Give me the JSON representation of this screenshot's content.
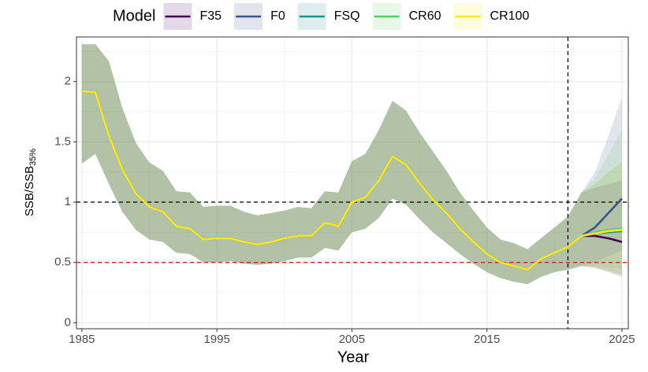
{
  "chart_data": {
    "type": "line",
    "x_label": "Year",
    "y_label": "SSB/SSB",
    "y_label_sub": "35%",
    "legend_title": "Model",
    "legend_position": "top",
    "grid": true,
    "band_opacity": 0.15,
    "xlim": [
      1984.6,
      2025.47
    ],
    "xticks": [
      1985,
      1995,
      2005,
      2015,
      2025
    ],
    "xminor": [
      1990,
      2000,
      2010,
      2020
    ],
    "ylim": [
      -0.05,
      2.37
    ],
    "yticks": [
      0,
      0.5,
      1,
      1.5,
      2
    ],
    "yminor": [
      0.25,
      0.75,
      1.25,
      1.75,
      2.25
    ],
    "hlines": [
      {
        "value": 1,
        "color": "#000000"
      },
      {
        "value": 0.5,
        "color": "#e41a1c"
      }
    ],
    "vlines": [
      {
        "value": 2021,
        "color": "#000000"
      }
    ],
    "x": [
      1985,
      1986,
      1987,
      1988,
      1989,
      1990,
      1991,
      1992,
      1993,
      1994,
      1995,
      1996,
      1997,
      1998,
      1999,
      2000,
      2001,
      2002,
      2003,
      2004,
      2005,
      2006,
      2007,
      2008,
      2009,
      2010,
      2011,
      2012,
      2013,
      2014,
      2015,
      2016,
      2017,
      2018,
      2019,
      2020,
      2021,
      2022,
      2023,
      2024,
      2025
    ],
    "series": [
      {
        "name": "F35",
        "color": "#440154",
        "values": [
          1.92,
          1.91,
          1.55,
          1.27,
          1.07,
          0.96,
          0.92,
          0.8,
          0.78,
          0.69,
          0.7,
          0.7,
          0.67,
          0.65,
          0.67,
          0.7,
          0.72,
          0.72,
          0.83,
          0.8,
          1.0,
          1.04,
          1.18,
          1.38,
          1.31,
          1.16,
          1.02,
          0.91,
          0.78,
          0.67,
          0.57,
          0.5,
          0.47,
          0.44,
          0.53,
          0.58,
          0.63,
          0.72,
          0.72,
          0.7,
          0.67
        ],
        "upper": [
          2.31,
          2.31,
          2.17,
          1.78,
          1.49,
          1.33,
          1.26,
          1.09,
          1.08,
          0.96,
          0.97,
          0.97,
          0.92,
          0.89,
          0.91,
          0.93,
          0.96,
          0.95,
          1.09,
          1.08,
          1.34,
          1.4,
          1.6,
          1.84,
          1.76,
          1.58,
          1.42,
          1.26,
          1.08,
          0.93,
          0.79,
          0.69,
          0.66,
          0.61,
          0.7,
          0.79,
          0.88,
          1.08,
          1.12,
          1.15,
          1.18
        ],
        "lower": [
          1.32,
          1.4,
          1.15,
          0.92,
          0.77,
          0.69,
          0.67,
          0.58,
          0.57,
          0.5,
          0.5,
          0.51,
          0.49,
          0.48,
          0.49,
          0.51,
          0.54,
          0.54,
          0.62,
          0.6,
          0.75,
          0.78,
          0.87,
          1.03,
          0.98,
          0.86,
          0.75,
          0.66,
          0.57,
          0.49,
          0.42,
          0.37,
          0.34,
          0.32,
          0.38,
          0.42,
          0.44,
          0.47,
          0.46,
          0.42,
          0.38
        ]
      },
      {
        "name": "F0",
        "color": "#3b528b",
        "values": [
          1.92,
          1.91,
          1.55,
          1.27,
          1.07,
          0.96,
          0.92,
          0.8,
          0.78,
          0.69,
          0.7,
          0.7,
          0.67,
          0.65,
          0.67,
          0.7,
          0.72,
          0.72,
          0.83,
          0.8,
          1.0,
          1.04,
          1.18,
          1.38,
          1.31,
          1.16,
          1.02,
          0.91,
          0.78,
          0.67,
          0.57,
          0.5,
          0.47,
          0.44,
          0.53,
          0.58,
          0.63,
          0.72,
          0.79,
          0.91,
          1.03
        ],
        "upper": [
          2.31,
          2.31,
          2.17,
          1.78,
          1.49,
          1.33,
          1.26,
          1.09,
          1.08,
          0.96,
          0.97,
          0.97,
          0.92,
          0.89,
          0.91,
          0.93,
          0.96,
          0.95,
          1.09,
          1.08,
          1.34,
          1.4,
          1.6,
          1.84,
          1.76,
          1.58,
          1.42,
          1.26,
          1.08,
          0.93,
          0.79,
          0.69,
          0.66,
          0.61,
          0.7,
          0.79,
          0.88,
          1.08,
          1.25,
          1.55,
          1.87
        ],
        "lower": [
          1.32,
          1.4,
          1.15,
          0.92,
          0.77,
          0.69,
          0.67,
          0.58,
          0.57,
          0.5,
          0.5,
          0.51,
          0.49,
          0.48,
          0.49,
          0.51,
          0.54,
          0.54,
          0.62,
          0.6,
          0.75,
          0.78,
          0.87,
          1.03,
          0.98,
          0.86,
          0.75,
          0.66,
          0.57,
          0.49,
          0.42,
          0.37,
          0.34,
          0.32,
          0.38,
          0.42,
          0.44,
          0.47,
          0.5,
          0.55,
          0.6
        ]
      },
      {
        "name": "FSQ",
        "color": "#21908c",
        "values": [
          1.92,
          1.91,
          1.55,
          1.27,
          1.07,
          0.96,
          0.92,
          0.8,
          0.78,
          0.69,
          0.7,
          0.7,
          0.67,
          0.65,
          0.67,
          0.7,
          0.72,
          0.72,
          0.83,
          0.8,
          1.0,
          1.04,
          1.18,
          1.38,
          1.31,
          1.16,
          1.02,
          0.91,
          0.78,
          0.67,
          0.57,
          0.5,
          0.47,
          0.44,
          0.53,
          0.58,
          0.63,
          0.72,
          0.74,
          0.75,
          0.76
        ],
        "upper": [
          2.31,
          2.31,
          2.17,
          1.78,
          1.49,
          1.33,
          1.26,
          1.09,
          1.08,
          0.96,
          0.97,
          0.97,
          0.92,
          0.89,
          0.91,
          0.93,
          0.96,
          0.95,
          1.09,
          1.08,
          1.34,
          1.4,
          1.6,
          1.84,
          1.76,
          1.58,
          1.42,
          1.26,
          1.08,
          0.93,
          0.79,
          0.69,
          0.66,
          0.61,
          0.7,
          0.79,
          0.88,
          1.08,
          1.15,
          1.25,
          1.33
        ],
        "lower": [
          1.32,
          1.4,
          1.15,
          0.92,
          0.77,
          0.69,
          0.67,
          0.58,
          0.57,
          0.5,
          0.5,
          0.51,
          0.49,
          0.48,
          0.49,
          0.51,
          0.54,
          0.54,
          0.62,
          0.6,
          0.75,
          0.78,
          0.87,
          1.03,
          0.98,
          0.86,
          0.75,
          0.66,
          0.57,
          0.49,
          0.42,
          0.37,
          0.34,
          0.32,
          0.38,
          0.42,
          0.44,
          0.47,
          0.45,
          0.43,
          0.4
        ]
      },
      {
        "name": "CR60",
        "color": "#5dc863",
        "values": [
          1.92,
          1.91,
          1.55,
          1.27,
          1.07,
          0.96,
          0.92,
          0.8,
          0.78,
          0.69,
          0.7,
          0.7,
          0.67,
          0.65,
          0.67,
          0.7,
          0.72,
          0.72,
          0.83,
          0.8,
          1.0,
          1.04,
          1.18,
          1.38,
          1.31,
          1.16,
          1.02,
          0.91,
          0.78,
          0.67,
          0.57,
          0.5,
          0.47,
          0.44,
          0.53,
          0.58,
          0.63,
          0.72,
          0.75,
          0.77,
          0.78
        ],
        "upper": [
          2.31,
          2.31,
          2.17,
          1.78,
          1.49,
          1.33,
          1.26,
          1.09,
          1.08,
          0.96,
          0.97,
          0.97,
          0.92,
          0.89,
          0.91,
          0.93,
          0.96,
          0.95,
          1.09,
          1.08,
          1.34,
          1.4,
          1.6,
          1.84,
          1.76,
          1.58,
          1.42,
          1.26,
          1.08,
          0.93,
          0.79,
          0.69,
          0.66,
          0.61,
          0.7,
          0.79,
          0.88,
          1.08,
          1.2,
          1.4,
          1.6
        ],
        "lower": [
          1.32,
          1.4,
          1.15,
          0.92,
          0.77,
          0.69,
          0.67,
          0.58,
          0.57,
          0.5,
          0.5,
          0.51,
          0.49,
          0.48,
          0.49,
          0.51,
          0.54,
          0.54,
          0.62,
          0.6,
          0.75,
          0.78,
          0.87,
          1.03,
          0.98,
          0.86,
          0.75,
          0.66,
          0.57,
          0.49,
          0.42,
          0.37,
          0.34,
          0.32,
          0.38,
          0.42,
          0.44,
          0.47,
          0.47,
          0.46,
          0.45
        ]
      },
      {
        "name": "CR100",
        "color": "#fde725",
        "values": [
          1.92,
          1.91,
          1.55,
          1.27,
          1.07,
          0.96,
          0.92,
          0.8,
          0.78,
          0.69,
          0.7,
          0.7,
          0.67,
          0.65,
          0.67,
          0.7,
          0.72,
          0.72,
          0.83,
          0.8,
          1.0,
          1.04,
          1.18,
          1.38,
          1.31,
          1.16,
          1.02,
          0.91,
          0.78,
          0.67,
          0.57,
          0.5,
          0.47,
          0.44,
          0.53,
          0.58,
          0.63,
          0.72,
          0.74,
          0.76,
          0.77
        ],
        "upper": [
          2.31,
          2.31,
          2.17,
          1.78,
          1.49,
          1.33,
          1.26,
          1.09,
          1.08,
          0.96,
          0.97,
          0.97,
          0.92,
          0.89,
          0.91,
          0.93,
          0.96,
          0.95,
          1.09,
          1.08,
          1.34,
          1.4,
          1.6,
          1.84,
          1.76,
          1.58,
          1.42,
          1.26,
          1.08,
          0.93,
          0.79,
          0.69,
          0.66,
          0.61,
          0.7,
          0.79,
          0.88,
          1.08,
          1.15,
          1.25,
          1.33
        ],
        "lower": [
          1.32,
          1.4,
          1.15,
          0.92,
          0.77,
          0.69,
          0.67,
          0.58,
          0.57,
          0.5,
          0.5,
          0.51,
          0.49,
          0.48,
          0.49,
          0.51,
          0.54,
          0.54,
          0.62,
          0.6,
          0.75,
          0.78,
          0.87,
          1.03,
          0.98,
          0.86,
          0.75,
          0.66,
          0.57,
          0.49,
          0.42,
          0.37,
          0.34,
          0.32,
          0.38,
          0.42,
          0.44,
          0.47,
          0.45,
          0.42,
          0.4
        ]
      }
    ]
  }
}
